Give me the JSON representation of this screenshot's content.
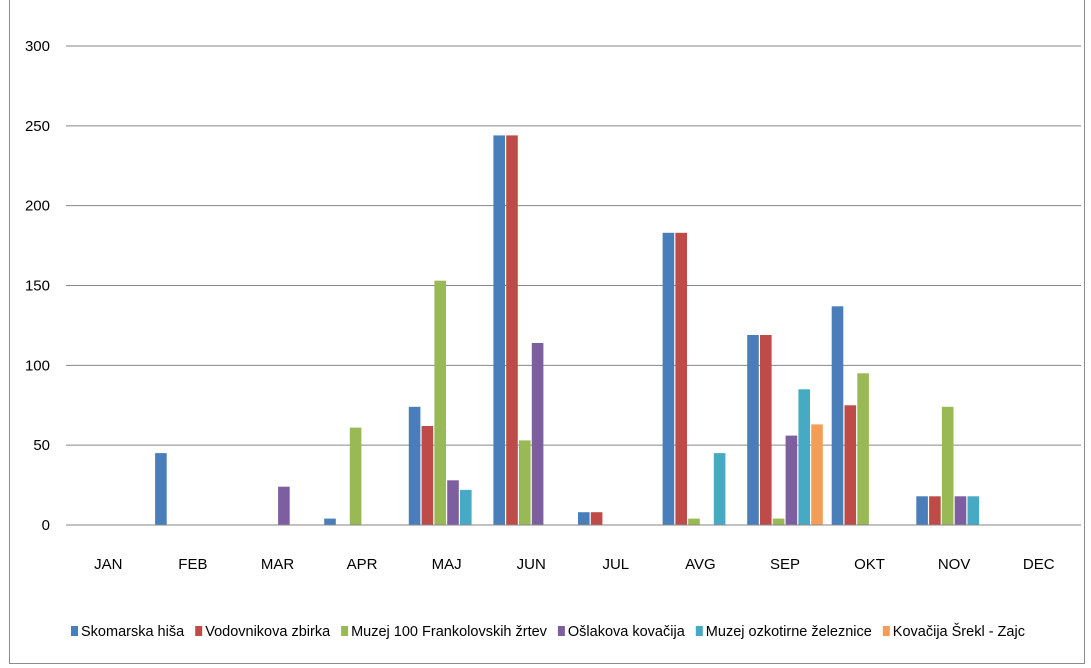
{
  "chart_data": {
    "type": "bar",
    "title": "",
    "xlabel": "",
    "ylabel": "",
    "ylim": [
      0,
      300
    ],
    "yticks": [
      0,
      50,
      100,
      150,
      200,
      250,
      300
    ],
    "grid": true,
    "legend_position": "bottom",
    "categories": [
      "JAN",
      "FEB",
      "MAR",
      "APR",
      "MAJ",
      "JUN",
      "JUL",
      "AVG",
      "SEP",
      "OKT",
      "NOV",
      "DEC"
    ],
    "series": [
      {
        "name": "Skomarska hiša",
        "color": "#4a7ebb",
        "values": [
          0,
          45,
          0,
          4,
          74,
          244,
          8,
          183,
          119,
          137,
          18,
          0
        ]
      },
      {
        "name": "Vodovnikova zbirka",
        "color": "#be4b48",
        "values": [
          0,
          0,
          0,
          0,
          62,
          244,
          8,
          183,
          119,
          75,
          18,
          0
        ]
      },
      {
        "name": "Muzej 100 Frankolovskih žrtev",
        "color": "#98b954",
        "values": [
          0,
          0,
          0,
          61,
          153,
          53,
          0,
          4,
          4,
          95,
          74,
          0
        ]
      },
      {
        "name": "Ošlakova kovačija",
        "color": "#7d5fa0",
        "values": [
          0,
          0,
          24,
          0,
          28,
          114,
          0,
          0,
          56,
          0,
          18,
          0
        ]
      },
      {
        "name": "Muzej ozkotirne železnice",
        "color": "#46aac5",
        "values": [
          0,
          0,
          0,
          0,
          22,
          0,
          0,
          45,
          85,
          0,
          18,
          0
        ]
      },
      {
        "name": "Kovačija Šrekl - Zajc",
        "color": "#f59d56",
        "values": [
          0,
          0,
          0,
          0,
          0,
          0,
          0,
          0,
          63,
          0,
          0,
          0
        ]
      }
    ]
  }
}
